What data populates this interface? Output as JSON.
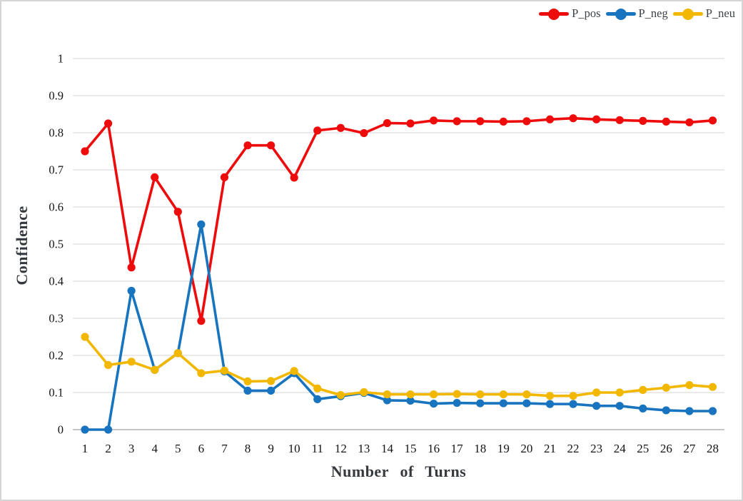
{
  "chart_data": {
    "type": "line",
    "title": "",
    "xlabel": "Number of Turns",
    "ylabel": "Confidence",
    "categories": [
      "1",
      "2",
      "3",
      "4",
      "5",
      "6",
      "7",
      "8",
      "9",
      "10",
      "11",
      "12",
      "13",
      "14",
      "15",
      "16",
      "17",
      "18",
      "19",
      "20",
      "21",
      "22",
      "23",
      "24",
      "25",
      "26",
      "27",
      "28"
    ],
    "y_ticks": [
      0,
      0.1,
      0.2,
      0.3,
      0.4,
      0.5,
      0.6,
      0.7,
      0.8,
      0.9,
      1
    ],
    "y_tick_labels": [
      "0",
      "0.1",
      "0.2",
      "0.3",
      "0.4",
      "0.5",
      "0.6",
      "0.7",
      "0.8",
      "0.9",
      "1"
    ],
    "ylim": [
      0,
      1
    ],
    "grid": "horizontal",
    "legend_position": "top-right",
    "series": [
      {
        "name": "P_pos",
        "color": "#ee0b0b",
        "values": [
          0.75,
          0.825,
          0.437,
          0.68,
          0.587,
          0.293,
          0.68,
          0.766,
          0.766,
          0.679,
          0.806,
          0.813,
          0.799,
          0.826,
          0.825,
          0.833,
          0.831,
          0.831,
          0.83,
          0.831,
          0.836,
          0.839,
          0.836,
          0.834,
          0.832,
          0.83,
          0.828,
          0.833
        ]
      },
      {
        "name": "P_neg",
        "color": "#1874be",
        "values": [
          0.0,
          0.0,
          0.374,
          0.161,
          0.206,
          0.553,
          0.157,
          0.105,
          0.105,
          0.152,
          0.082,
          0.09,
          0.099,
          0.079,
          0.078,
          0.07,
          0.072,
          0.071,
          0.071,
          0.071,
          0.069,
          0.069,
          0.064,
          0.064,
          0.057,
          0.052,
          0.05,
          0.05
        ]
      },
      {
        "name": "P_neu",
        "color": "#f2b800",
        "values": [
          0.25,
          0.174,
          0.183,
          0.161,
          0.206,
          0.152,
          0.159,
          0.13,
          0.131,
          0.158,
          0.111,
          0.093,
          0.101,
          0.095,
          0.095,
          0.095,
          0.096,
          0.095,
          0.095,
          0.095,
          0.091,
          0.091,
          0.1,
          0.1,
          0.107,
          0.113,
          0.12,
          0.115
        ]
      }
    ]
  },
  "colors": {
    "background": "#ffffff",
    "frame_border": "#d5d5d5",
    "gridline": "#dedede",
    "axis_line": "#c6c6c6",
    "tick_text": "#141414",
    "title_text": "#35393d",
    "legend_text": "#3f4347"
  }
}
